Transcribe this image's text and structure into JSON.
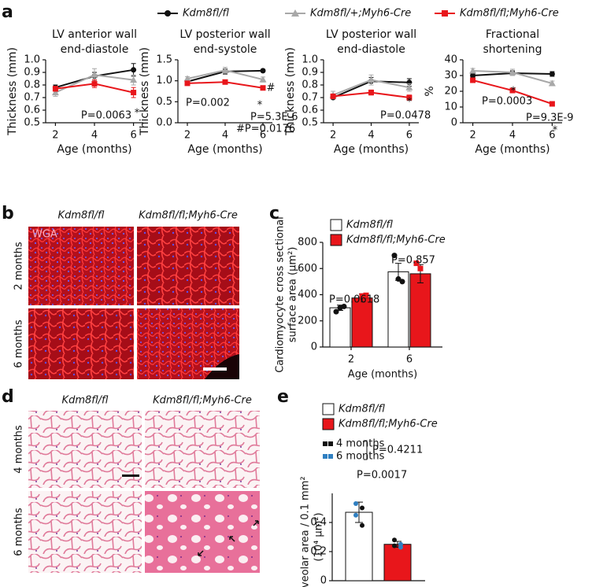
{
  "panel_labels": [
    "a",
    "b",
    "c",
    "d",
    "e"
  ],
  "legend": [
    {
      "name": "Kdm8fl/fl",
      "color": "#111111",
      "marker": "circle"
    },
    {
      "name": "Kdm8fl/+;Myh6-Cre",
      "color": "#a8a8a8",
      "marker": "triangle"
    },
    {
      "name": "Kdm8fl/fl;Myh6-Cre",
      "color": "#e8161b",
      "marker": "square"
    }
  ],
  "images": {
    "b": {
      "columns": [
        "Kdm8fl/fl",
        "Kdm8fl/fl;Myh6-Cre"
      ],
      "rows": [
        "2 months",
        "6 months"
      ],
      "stain": "WGA"
    },
    "d": {
      "columns": [
        "Kdm8fl/fl",
        "Kdm8fl/fl;Myh6-Cre"
      ],
      "rows": [
        "4 months",
        "6 months"
      ]
    }
  },
  "chart_data": [
    {
      "type": "line",
      "title": [
        "LV anterior wall",
        "end-diastole"
      ],
      "ylabel": "Thickness (mm)",
      "xlabel": "Age (months)",
      "x": [
        2,
        4,
        6
      ],
      "xlim": [
        1.5,
        6.5
      ],
      "xticks": [
        2,
        4,
        6
      ],
      "ylim": [
        0.5,
        1.0
      ],
      "yticks": [
        0.5,
        0.6,
        0.7,
        0.8,
        0.9,
        {
          "value": 1,
          "label": "1.0"
        }
      ],
      "series": [
        {
          "color": "#111111",
          "marker": "circle",
          "values": [
            0.78,
            0.87,
            0.92
          ],
          "errors": [
            0.02,
            0.03,
            0.05
          ]
        },
        {
          "color": "#a8a8a8",
          "marker": "triangle",
          "values": [
            0.74,
            0.88,
            0.84
          ],
          "errors": [
            0.03,
            0.05,
            0.04
          ]
        },
        {
          "color": "#e8161b",
          "marker": "square",
          "values": [
            0.77,
            0.81,
            0.74
          ],
          "errors": [
            0.02,
            0.03,
            0.04
          ]
        }
      ],
      "annotations": [
        "P=0.0063",
        "*"
      ]
    },
    {
      "type": "line",
      "title": [
        "LV posterior wall",
        "end-systole"
      ],
      "ylabel": "Thickness (mm)",
      "xlabel": "Age (months)",
      "x": [
        2,
        4,
        6
      ],
      "xlim": [
        1.5,
        6.5
      ],
      "xticks": [
        2,
        4,
        6
      ],
      "ylim": [
        0,
        1.5
      ],
      "yticks": [
        {
          "value": 0,
          "label": "0.0"
        },
        0.5,
        {
          "value": 1,
          "label": "1.0"
        },
        1.5
      ],
      "series": [
        {
          "color": "#111111",
          "marker": "circle",
          "values": [
            0.98,
            1.22,
            1.24
          ],
          "errors": [
            0.03,
            0.06,
            0.03
          ]
        },
        {
          "color": "#a8a8a8",
          "marker": "triangle",
          "values": [
            1.05,
            1.25,
            1.03
          ],
          "errors": [
            0.05,
            0.07,
            0.06
          ]
        },
        {
          "color": "#e8161b",
          "marker": "square",
          "values": [
            0.94,
            0.97,
            0.83
          ],
          "errors": [
            0.03,
            0.04,
            0.05
          ]
        }
      ],
      "annotations": [
        "#",
        "P=0.002",
        "*",
        "P=5.3E-6",
        "#P=0.0176"
      ]
    },
    {
      "type": "line",
      "title": [
        "LV posterior wall",
        "end-diastole"
      ],
      "ylabel": "Thickness (mm)",
      "xlabel": "Age (months)",
      "x": [
        2,
        4,
        6
      ],
      "xlim": [
        1.5,
        6.5
      ],
      "xticks": [
        2,
        4,
        6
      ],
      "ylim": [
        0.5,
        1.0
      ],
      "yticks": [
        0.5,
        0.6,
        0.7,
        0.8,
        0.9,
        {
          "value": 1,
          "label": "1.0"
        }
      ],
      "series": [
        {
          "color": "#111111",
          "marker": "circle",
          "values": [
            0.7,
            0.83,
            0.82
          ],
          "errors": [
            0.01,
            0.03,
            0.03
          ]
        },
        {
          "color": "#a8a8a8",
          "marker": "triangle",
          "values": [
            0.72,
            0.84,
            0.78
          ],
          "errors": [
            0.03,
            0.04,
            0.03
          ]
        },
        {
          "color": "#e8161b",
          "marker": "square",
          "values": [
            0.71,
            0.74,
            0.7
          ],
          "errors": [
            0.01,
            0.02,
            0.02
          ]
        }
      ],
      "annotations": [
        "*",
        "P=0.0478"
      ]
    },
    {
      "type": "line",
      "title": [
        "Fractional",
        "shortening"
      ],
      "ylabel": "%",
      "xlabel": "Age (months)",
      "x": [
        2,
        4,
        6
      ],
      "xlim": [
        1.5,
        6.5
      ],
      "xticks": [
        2,
        4,
        6
      ],
      "ylim": [
        0,
        40
      ],
      "yticks": [
        0,
        10,
        20,
        30,
        40
      ],
      "series": [
        {
          "color": "#111111",
          "marker": "circle",
          "values": [
            30,
            31.5,
            31
          ],
          "errors": [
            1,
            1.5,
            1.5
          ]
        },
        {
          "color": "#a8a8a8",
          "marker": "triangle",
          "values": [
            33,
            32,
            25
          ],
          "errors": [
            1.5,
            2,
            1.5
          ]
        },
        {
          "color": "#e8161b",
          "marker": "square",
          "values": [
            27,
            20.5,
            12
          ],
          "errors": [
            1,
            1.5,
            1.5
          ]
        }
      ],
      "annotations": [
        "*",
        "P=0.0003",
        "P=9.3E-9",
        "*"
      ]
    },
    {
      "type": "bar",
      "ylabel": [
        "Cardiomyocyte cross sectional",
        "surface area (µm²)"
      ],
      "xlabel": "Age (months)",
      "categories": [
        "2",
        "6"
      ],
      "ylim": [
        0,
        800
      ],
      "yticks": [
        0,
        200,
        400,
        600,
        800
      ],
      "series": [
        {
          "name": "Kdm8fl/fl",
          "color": "#ffffff",
          "values": [
            300,
            575
          ],
          "errors": [
            20,
            65
          ],
          "points": [
            [
              270,
              300,
              310
            ],
            [
              700,
              520,
              500
            ]
          ],
          "point_color": "#111111",
          "point_marker": "circle"
        },
        {
          "name": "Kdm8fl/fl;Myh6-Cre",
          "color": "#e8161b",
          "values": [
            375,
            560
          ],
          "errors": [
            30,
            70
          ],
          "points": [
            [
              350,
              390,
              395
            ],
            [
              640,
              600,
              450
            ]
          ],
          "point_color": "#e8161b",
          "point_marker": "square"
        }
      ],
      "annotations": [
        "P=0.0618",
        "P=0.857"
      ]
    },
    {
      "type": "bar-single",
      "ylabel": [
        "Alveolar area / 0.1 mm²",
        "(10⁴ µm²)"
      ],
      "series_names": [
        "Kdm8fl/fl",
        "Kdm8fl/fl;Myh6-Cre"
      ],
      "colors": [
        "#ffffff",
        "#e8161b"
      ],
      "values": [
        0.47,
        0.25
      ],
      "errors": [
        0.07,
        0.02
      ],
      "ylim": [
        0,
        0.6
      ],
      "yticks": [
        0,
        0.2,
        0.4
      ],
      "points": [
        [
          0.53,
          0.5,
          0.45,
          0.38
        ],
        [
          0.28,
          0.25,
          0.24,
          0.23
        ]
      ],
      "point_colors": [
        [
          "#2f7fc1",
          "#111111",
          "#2f7fc1",
          "#111111"
        ],
        [
          "#111111",
          "#2f7fc1",
          "#111111",
          "#2f7fc1"
        ]
      ],
      "point_legend": [
        {
          "name": "4 months",
          "color": "#111111"
        },
        {
          "name": "6 months",
          "color": "#2f7fc1"
        }
      ],
      "annotations": [
        "P=0.4211",
        "P=0.0017"
      ]
    }
  ]
}
